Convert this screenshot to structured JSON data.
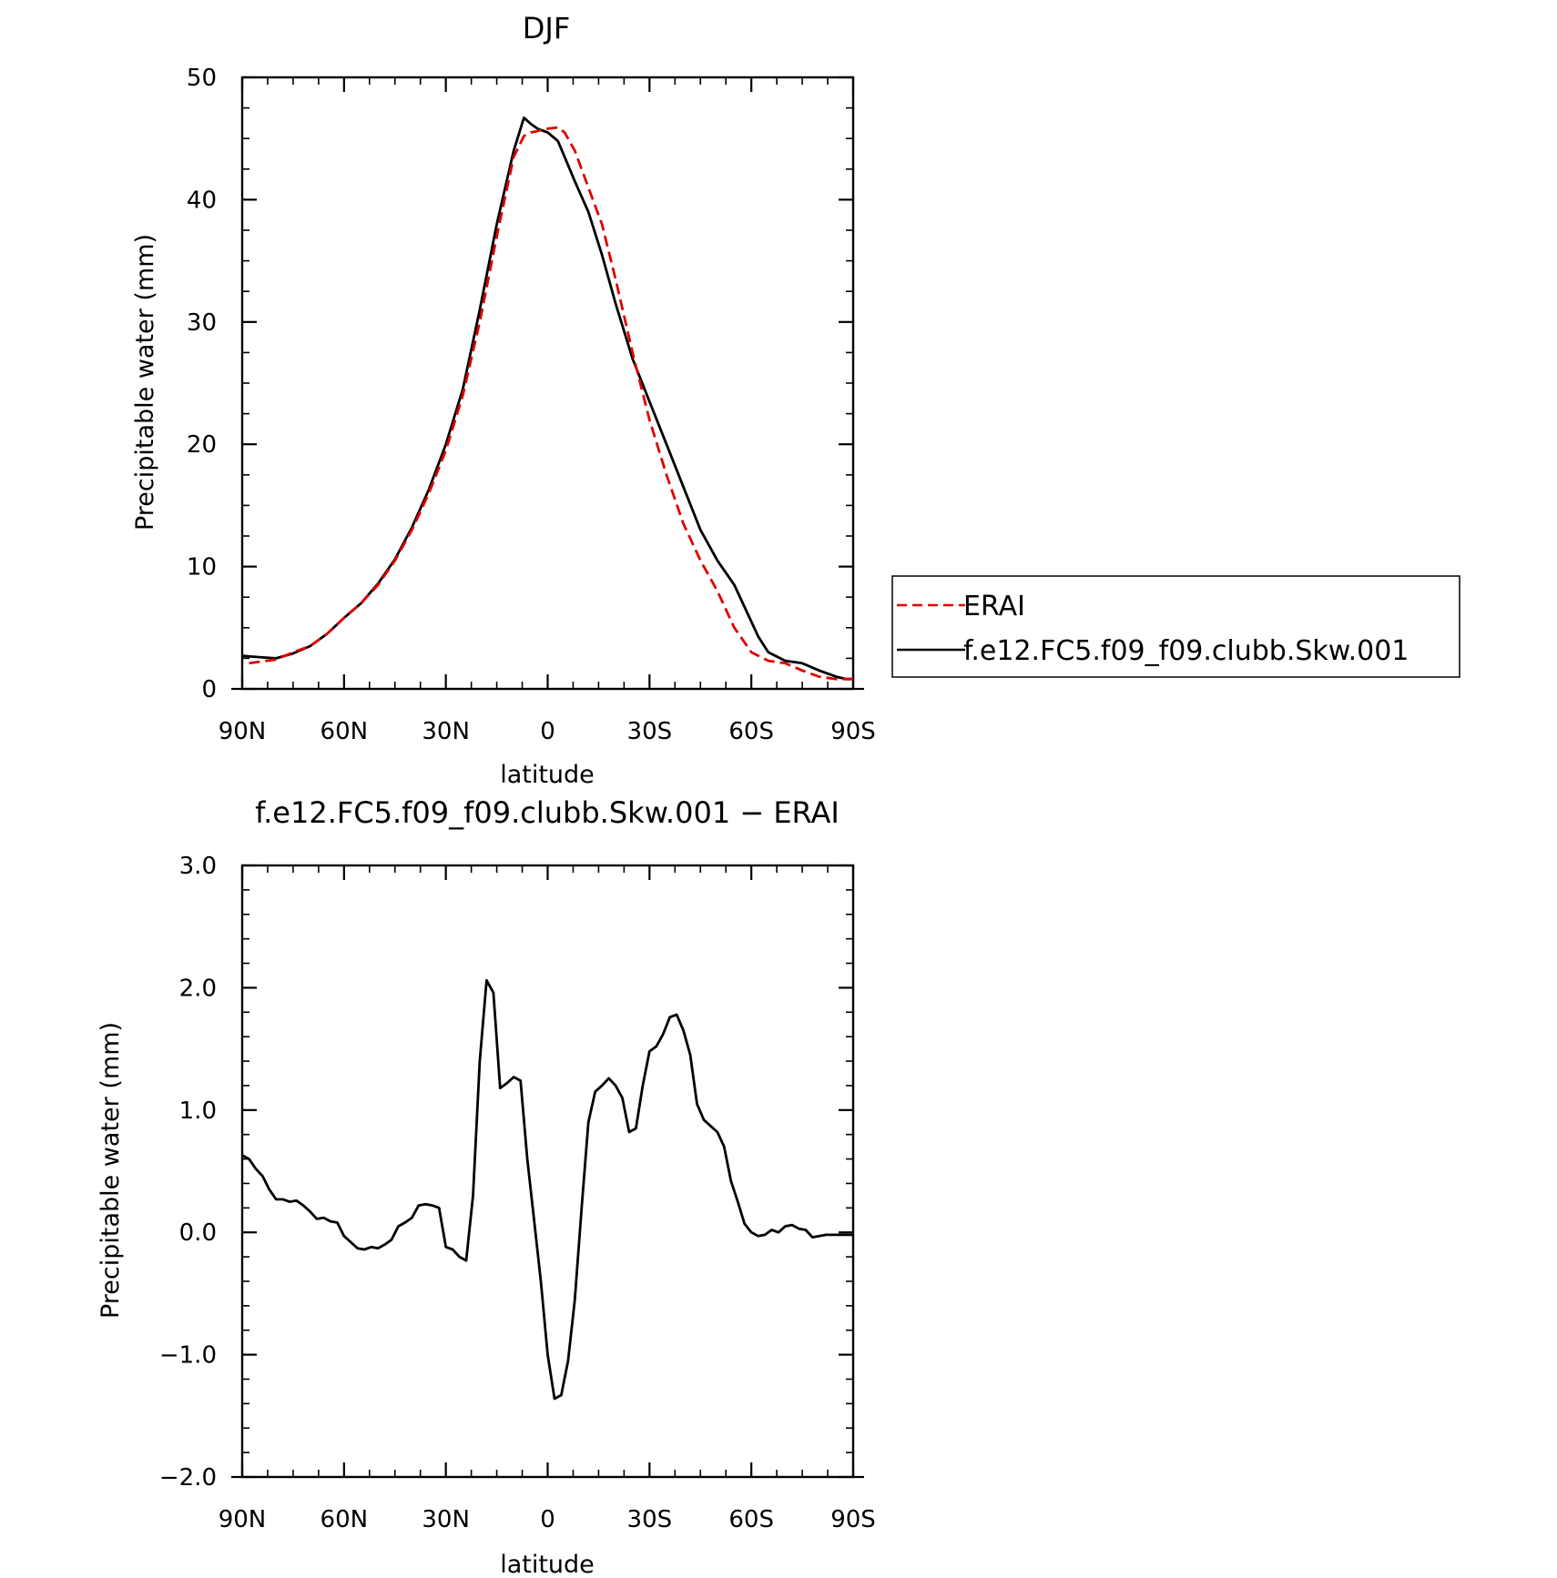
{
  "chart_data": [
    {
      "type": "line",
      "title": "DJF",
      "xlabel": "latitude",
      "ylabel": "Precipitable water (mm)",
      "xlim": [
        90,
        -90
      ],
      "ylim": [
        0,
        50
      ],
      "x_ticks": [
        {
          "value": 90,
          "label": "90N"
        },
        {
          "value": 60,
          "label": "60N"
        },
        {
          "value": 30,
          "label": "30N"
        },
        {
          "value": 0,
          "label": "0"
        },
        {
          "value": -30,
          "label": "30S"
        },
        {
          "value": -60,
          "label": "60S"
        },
        {
          "value": -90,
          "label": "90S"
        }
      ],
      "y_ticks": [
        {
          "value": 0,
          "label": "0"
        },
        {
          "value": 10,
          "label": "10"
        },
        {
          "value": 20,
          "label": "20"
        },
        {
          "value": 30,
          "label": "30"
        },
        {
          "value": 40,
          "label": "40"
        },
        {
          "value": 50,
          "label": "50"
        }
      ],
      "legend": {
        "placement": "right, outside plot"
      },
      "series": [
        {
          "name": "ERAI",
          "color": "#e00000",
          "dash": true,
          "x": [
            88,
            80,
            75,
            70,
            65,
            60,
            55,
            50,
            45,
            40,
            35,
            30,
            25,
            20,
            15,
            10,
            7,
            5,
            3,
            2,
            0,
            -3,
            -5,
            -8,
            -12,
            -16,
            -20,
            -25,
            -30,
            -35,
            -40,
            -45,
            -50,
            -55,
            -60,
            -65,
            -70,
            -75,
            -80,
            -85,
            -88,
            -90
          ],
          "y": [
            2.1,
            2.4,
            3.0,
            3.5,
            4.5,
            5.8,
            7.0,
            8.5,
            10.5,
            13.0,
            16.0,
            19.5,
            24.0,
            30.0,
            37.0,
            43.5,
            45.2,
            45.5,
            45.6,
            45.7,
            45.8,
            45.9,
            45.5,
            44.0,
            41.0,
            38.0,
            33.5,
            27.5,
            22.0,
            17.5,
            13.5,
            10.5,
            8.0,
            5.0,
            3.0,
            2.3,
            2.1,
            1.5,
            1.0,
            0.8,
            0.8,
            0.8
          ]
        },
        {
          "name": "f.e12.FC5.f09_f09.clubb.Skw.001",
          "color": "#000000",
          "dash": false,
          "x": [
            90,
            85,
            80,
            75,
            70,
            65,
            60,
            55,
            50,
            45,
            40,
            35,
            30,
            25,
            20,
            15,
            10,
            7,
            5,
            3,
            0,
            -3,
            -5,
            -8,
            -12,
            -16,
            -20,
            -25,
            -30,
            -35,
            -40,
            -45,
            -50,
            -55,
            -60,
            -62,
            -65,
            -70,
            -75,
            -80,
            -85,
            -88,
            -90
          ],
          "y": [
            2.7,
            2.6,
            2.5,
            2.9,
            3.5,
            4.5,
            5.8,
            7.0,
            8.6,
            10.6,
            13.2,
            16.3,
            20.0,
            24.5,
            31.0,
            38.0,
            44.0,
            46.7,
            46.2,
            45.8,
            45.5,
            44.8,
            43.5,
            41.5,
            39.0,
            35.5,
            31.5,
            27.0,
            23.5,
            20.0,
            16.5,
            13.0,
            10.5,
            8.5,
            5.5,
            4.3,
            3.0,
            2.3,
            2.1,
            1.5,
            1.0,
            0.8,
            0.8
          ]
        }
      ]
    },
    {
      "type": "line",
      "title": "f.e12.FC5.f09_f09.clubb.Skw.001 − ERAI",
      "xlabel": "latitude",
      "ylabel": "Precipitable water (mm)",
      "xlim": [
        90,
        -90
      ],
      "ylim": [
        -2.0,
        3.0
      ],
      "x_ticks": [
        {
          "value": 90,
          "label": "90N"
        },
        {
          "value": 60,
          "label": "60N"
        },
        {
          "value": 30,
          "label": "30N"
        },
        {
          "value": 0,
          "label": "0"
        },
        {
          "value": -30,
          "label": "30S"
        },
        {
          "value": -60,
          "label": "60S"
        },
        {
          "value": -90,
          "label": "90S"
        }
      ],
      "y_ticks": [
        {
          "value": -2.0,
          "label": "−2.0"
        },
        {
          "value": -1.0,
          "label": "−1.0"
        },
        {
          "value": 0.0,
          "label": "0.0"
        },
        {
          "value": 1.0,
          "label": "1.0"
        },
        {
          "value": 2.0,
          "label": "2.0"
        },
        {
          "value": 3.0,
          "label": "3.0"
        }
      ],
      "series": [
        {
          "color": "#000000",
          "x": [
            90,
            88,
            86,
            84,
            82,
            80,
            78,
            76,
            74,
            72,
            70,
            68,
            66,
            64,
            62,
            60,
            58,
            56,
            54,
            52,
            50,
            48,
            46,
            44,
            42,
            40,
            38,
            36,
            34,
            32,
            30,
            28,
            26,
            24,
            22,
            20,
            18,
            16,
            14,
            12,
            10,
            8,
            6,
            4,
            2,
            0,
            -2,
            -4,
            -6,
            -8,
            -10,
            -12,
            -14,
            -16,
            -18,
            -20,
            -22,
            -24,
            -26,
            -28,
            -30,
            -32,
            -34,
            -36,
            -38,
            -40,
            -42,
            -44,
            -46,
            -48,
            -50,
            -52,
            -54,
            -56,
            -58,
            -60,
            -62,
            -64,
            -66,
            -68,
            -70,
            -72,
            -74,
            -76,
            -78,
            -80,
            -82,
            -84,
            -86,
            -88,
            -90
          ],
          "y": [
            0.63,
            0.6,
            0.52,
            0.46,
            0.35,
            0.27,
            0.27,
            0.25,
            0.26,
            0.22,
            0.17,
            0.11,
            0.12,
            0.09,
            0.08,
            -0.03,
            -0.08,
            -0.13,
            -0.14,
            -0.12,
            -0.13,
            -0.1,
            -0.06,
            0.05,
            0.08,
            0.12,
            0.22,
            0.23,
            0.22,
            0.2,
            -0.12,
            -0.14,
            -0.2,
            -0.23,
            0.3,
            1.4,
            2.06,
            1.96,
            1.18,
            1.22,
            1.27,
            1.24,
            0.6,
            0.1,
            -0.4,
            -1.0,
            -1.36,
            -1.33,
            -1.05,
            -0.55,
            0.2,
            0.9,
            1.15,
            1.2,
            1.26,
            1.2,
            1.1,
            0.82,
            0.85,
            1.2,
            1.48,
            1.52,
            1.62,
            1.76,
            1.78,
            1.65,
            1.45,
            1.05,
            0.92,
            0.87,
            0.82,
            0.7,
            0.42,
            0.25,
            0.07,
            0.0,
            -0.03,
            -0.02,
            0.02,
            0.0,
            0.05,
            0.06,
            0.03,
            0.02,
            -0.04,
            -0.03,
            -0.02,
            -0.02,
            -0.02,
            -0.02,
            -0.02
          ]
        }
      ]
    }
  ]
}
